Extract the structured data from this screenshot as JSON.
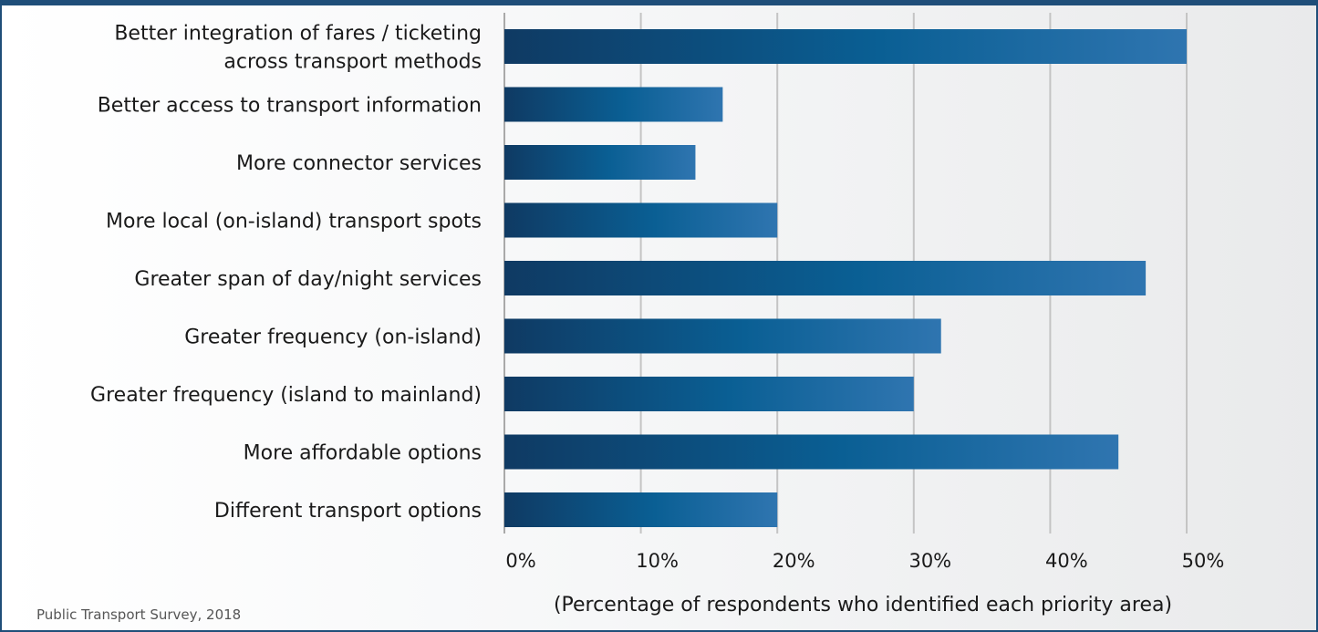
{
  "chart_data": {
    "type": "bar",
    "orientation": "horizontal",
    "categories": [
      [
        "Better integration of fares / ticketing",
        "across transport methods"
      ],
      [
        "Better access to transport information"
      ],
      [
        "More connector services"
      ],
      [
        "More local (on-island) transport spots"
      ],
      [
        "Greater span of day/night services"
      ],
      [
        "Greater frequency (on-island)"
      ],
      [
        "Greater frequency (island to mainland)"
      ],
      [
        "More affordable options"
      ],
      [
        "Different transport options"
      ]
    ],
    "values": [
      50,
      16,
      14,
      20,
      47,
      32,
      30,
      45,
      20
    ],
    "xlim": [
      0,
      50
    ],
    "xticks": [
      "0%",
      "10%",
      "20%",
      "30%",
      "40%",
      "50%"
    ],
    "xlabel": "(Percentage of respondents who identified each priority area)",
    "grid": true,
    "colors": {
      "bar_dark": "#0f3a63",
      "bar_mid": "#0a5f94",
      "bar_light": "#2f75b0",
      "grid": "#c4c4c4",
      "frame": "#1f4e79"
    }
  },
  "source_note": "Public Transport Survey, 2018"
}
